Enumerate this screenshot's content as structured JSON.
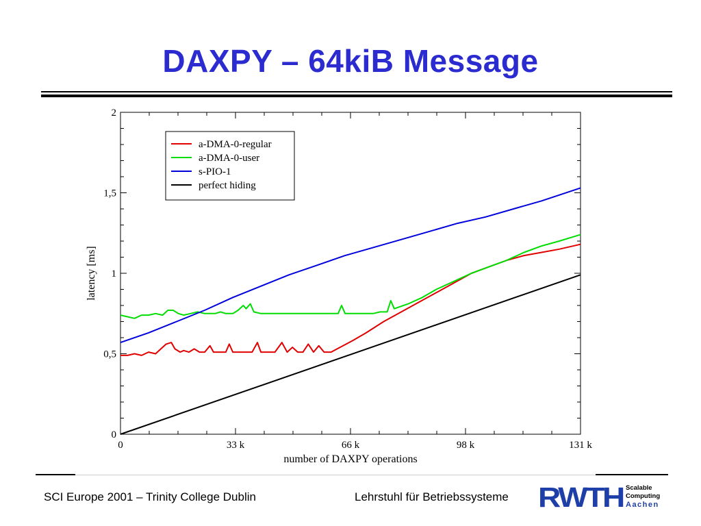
{
  "slide": {
    "title": "DAXPY – 64kiB Message",
    "footer_left": "SCI Europe 2001 – Trinity College Dublin",
    "footer_right": "Lehrstuhl für Betriebssysteme",
    "logo": {
      "wordmark": "RWTH",
      "line1": "Scalable",
      "line2": "Computing",
      "line3": "Aachen",
      "color": "#1f3fa8"
    },
    "title_color": "#2b2bd0"
  },
  "chart_data": {
    "type": "line",
    "title": "",
    "xlabel": "number of DAXPY operations",
    "ylabel": "latency [ms]",
    "xlim": [
      0,
      131072
    ],
    "ylim": [
      0,
      2
    ],
    "x_ticks": [
      {
        "value": 0,
        "label": "0"
      },
      {
        "value": 32768,
        "label": "33 k"
      },
      {
        "value": 65536,
        "label": "66 k"
      },
      {
        "value": 98304,
        "label": "98 k"
      },
      {
        "value": 131072,
        "label": "131 k"
      }
    ],
    "y_ticks": [
      {
        "value": 0,
        "label": "0"
      },
      {
        "value": 0.5,
        "label": "0,5"
      },
      {
        "value": 1,
        "label": "1"
      },
      {
        "value": 1.5,
        "label": "1,5"
      },
      {
        "value": 2,
        "label": "2"
      }
    ],
    "grid": false,
    "legend_position": "top-left",
    "series": [
      {
        "name": "a-DMA-0-regular",
        "color": "#e00000",
        "points": [
          [
            0,
            0.49
          ],
          [
            2000,
            0.49
          ],
          [
            4000,
            0.5
          ],
          [
            6000,
            0.49
          ],
          [
            8000,
            0.51
          ],
          [
            10000,
            0.5
          ],
          [
            11500,
            0.53
          ],
          [
            13000,
            0.56
          ],
          [
            14500,
            0.57
          ],
          [
            15500,
            0.53
          ],
          [
            17000,
            0.51
          ],
          [
            18000,
            0.52
          ],
          [
            19500,
            0.51
          ],
          [
            21000,
            0.53
          ],
          [
            22500,
            0.51
          ],
          [
            24000,
            0.51
          ],
          [
            25500,
            0.55
          ],
          [
            26500,
            0.51
          ],
          [
            28000,
            0.51
          ],
          [
            30000,
            0.51
          ],
          [
            31000,
            0.56
          ],
          [
            32000,
            0.51
          ],
          [
            34000,
            0.51
          ],
          [
            36000,
            0.51
          ],
          [
            37500,
            0.51
          ],
          [
            39000,
            0.57
          ],
          [
            40000,
            0.51
          ],
          [
            42000,
            0.51
          ],
          [
            44000,
            0.51
          ],
          [
            46000,
            0.57
          ],
          [
            47500,
            0.51
          ],
          [
            49000,
            0.54
          ],
          [
            50500,
            0.51
          ],
          [
            52000,
            0.51
          ],
          [
            53500,
            0.56
          ],
          [
            55000,
            0.51
          ],
          [
            56500,
            0.55
          ],
          [
            58000,
            0.51
          ],
          [
            60000,
            0.51
          ],
          [
            66000,
            0.58
          ],
          [
            70000,
            0.63
          ],
          [
            75000,
            0.7
          ],
          [
            80000,
            0.76
          ],
          [
            85000,
            0.82
          ],
          [
            90000,
            0.88
          ],
          [
            95000,
            0.94
          ],
          [
            100000,
            1.0
          ],
          [
            105000,
            1.04
          ],
          [
            110000,
            1.08
          ],
          [
            115000,
            1.11
          ],
          [
            120000,
            1.13
          ],
          [
            125000,
            1.15
          ],
          [
            131072,
            1.18
          ]
        ]
      },
      {
        "name": "a-DMA-0-user",
        "color": "#00dd00",
        "points": [
          [
            0,
            0.74
          ],
          [
            2000,
            0.73
          ],
          [
            4000,
            0.72
          ],
          [
            6000,
            0.74
          ],
          [
            8000,
            0.74
          ],
          [
            10000,
            0.75
          ],
          [
            12000,
            0.74
          ],
          [
            13500,
            0.77
          ],
          [
            15000,
            0.77
          ],
          [
            16500,
            0.75
          ],
          [
            18000,
            0.74
          ],
          [
            20000,
            0.75
          ],
          [
            22000,
            0.76
          ],
          [
            24000,
            0.75
          ],
          [
            25500,
            0.75
          ],
          [
            27000,
            0.75
          ],
          [
            28500,
            0.76
          ],
          [
            30000,
            0.75
          ],
          [
            32000,
            0.75
          ],
          [
            33500,
            0.77
          ],
          [
            35000,
            0.8
          ],
          [
            35800,
            0.78
          ],
          [
            37000,
            0.81
          ],
          [
            38000,
            0.76
          ],
          [
            40000,
            0.75
          ],
          [
            44000,
            0.75
          ],
          [
            48000,
            0.75
          ],
          [
            52000,
            0.75
          ],
          [
            56000,
            0.75
          ],
          [
            60000,
            0.75
          ],
          [
            62000,
            0.75
          ],
          [
            63000,
            0.8
          ],
          [
            64000,
            0.75
          ],
          [
            68000,
            0.75
          ],
          [
            72000,
            0.75
          ],
          [
            74000,
            0.76
          ],
          [
            76000,
            0.76
          ],
          [
            77000,
            0.83
          ],
          [
            78000,
            0.78
          ],
          [
            82000,
            0.81
          ],
          [
            86000,
            0.85
          ],
          [
            90000,
            0.9
          ],
          [
            95000,
            0.95
          ],
          [
            100000,
            1.0
          ],
          [
            105000,
            1.04
          ],
          [
            110000,
            1.08
          ],
          [
            115000,
            1.13
          ],
          [
            120000,
            1.17
          ],
          [
            125000,
            1.2
          ],
          [
            131072,
            1.24
          ]
        ]
      },
      {
        "name": "s-PIO-1",
        "color": "#0000dd",
        "points": [
          [
            0,
            0.57
          ],
          [
            8000,
            0.63
          ],
          [
            16000,
            0.7
          ],
          [
            24000,
            0.77
          ],
          [
            32000,
            0.85
          ],
          [
            40000,
            0.92
          ],
          [
            48000,
            0.99
          ],
          [
            56000,
            1.05
          ],
          [
            64000,
            1.11
          ],
          [
            72000,
            1.16
          ],
          [
            80000,
            1.21
          ],
          [
            88000,
            1.26
          ],
          [
            96000,
            1.31
          ],
          [
            104000,
            1.35
          ],
          [
            112000,
            1.4
          ],
          [
            120000,
            1.45
          ],
          [
            131072,
            1.53
          ]
        ]
      },
      {
        "name": "perfect hiding",
        "color": "#000000",
        "points": [
          [
            0,
            0.0
          ],
          [
            131072,
            0.99
          ]
        ]
      }
    ]
  }
}
